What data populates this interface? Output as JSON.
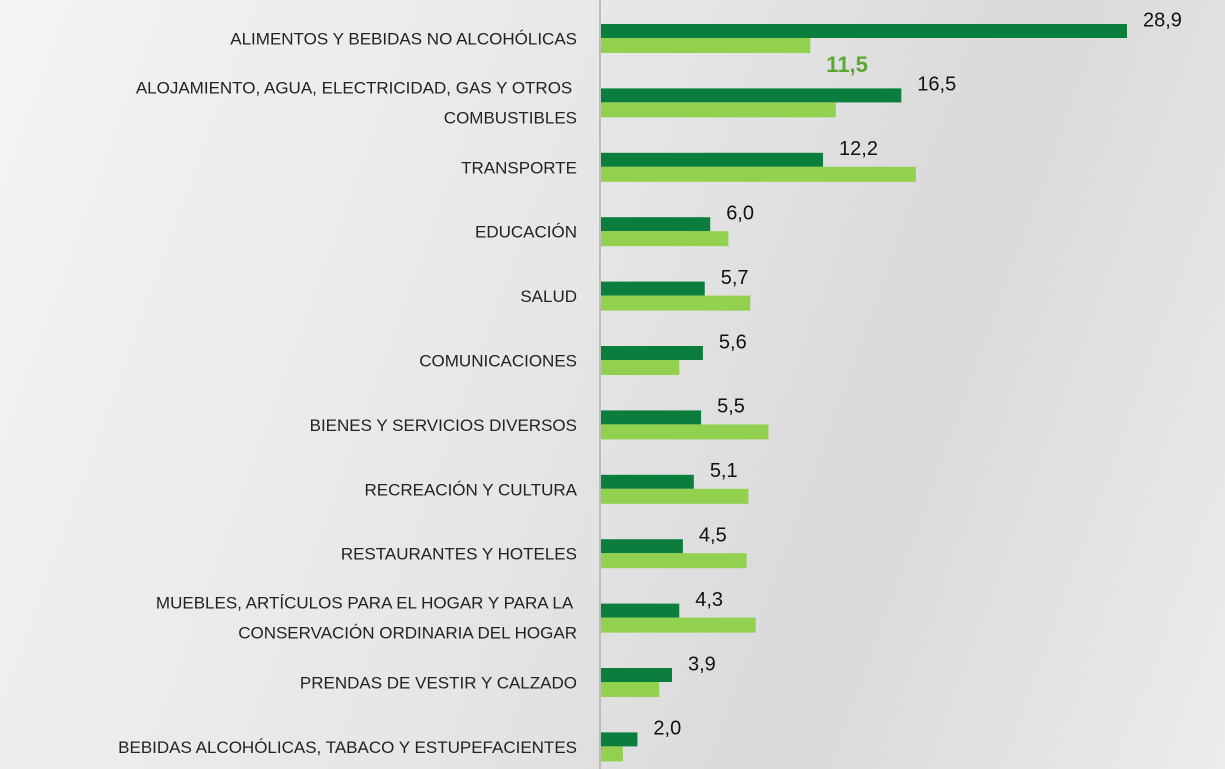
{
  "chart_data": {
    "type": "bar",
    "orientation": "horizontal",
    "categories": [
      "ALIMENTOS Y BEBIDAS NO ALCOHÓLICAS",
      "ALOJAMIENTO, AGUA, ELECTRICIDAD, GAS Y OTROS COMBUSTIBLES",
      "TRANSPORTE",
      "EDUCACIÓN",
      "SALUD",
      "COMUNICACIONES",
      "BIENES Y SERVICIOS DIVERSOS",
      "RECREACIÓN Y CULTURA",
      "RESTAURANTES Y HOTELES",
      "MUEBLES, ARTÍCULOS PARA EL HOGAR Y PARA LA CONSERVACIÓN ORDINARIA DEL HOGAR",
      "PRENDAS DE VESTIR Y CALZADO",
      "BEBIDAS ALCOHÓLICAS, TABACO Y ESTUPEFACIENTES"
    ],
    "series": [
      {
        "color": "#0b7d3c",
        "values": [
          28.9,
          16.5,
          12.2,
          6.0,
          5.7,
          5.6,
          5.5,
          5.1,
          4.5,
          4.3,
          3.9,
          2.0
        ],
        "value_labels": [
          "28,9",
          "16,5",
          "12,2",
          "6,0",
          "5,7",
          "5,6",
          "5,5",
          "5,1",
          "4,5",
          "4,3",
          "3,9",
          "2,0"
        ]
      },
      {
        "color": "#92d050",
        "values": [
          11.5,
          12.9,
          17.3,
          7.0,
          8.2,
          4.3,
          9.2,
          8.1,
          8.0,
          8.5,
          3.2,
          1.2
        ],
        "value_labels": [
          "11,5",
          null,
          null,
          null,
          null,
          null,
          null,
          null,
          null,
          null,
          null,
          null
        ]
      }
    ]
  }
}
